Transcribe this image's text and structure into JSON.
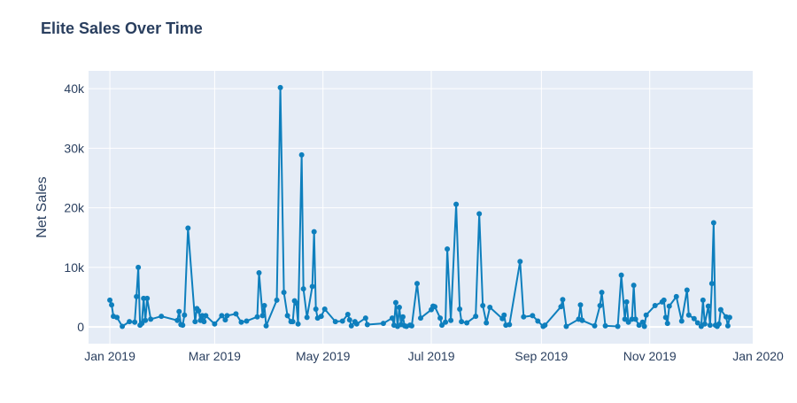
{
  "chart_data": {
    "type": "line",
    "title": "Elite Sales Over Time",
    "xlabel": "",
    "ylabel": "Net Sales",
    "x_ticks": [
      {
        "date": "2019-01-01",
        "label": "Jan 2019"
      },
      {
        "date": "2019-03-01",
        "label": "Mar 2019"
      },
      {
        "date": "2019-05-01",
        "label": "May 2019"
      },
      {
        "date": "2019-07-01",
        "label": "Jul 2019"
      },
      {
        "date": "2019-09-01",
        "label": "Sep 2019"
      },
      {
        "date": "2019-11-01",
        "label": "Nov 2019"
      },
      {
        "date": "2020-01-01",
        "label": "Jan 2020"
      }
    ],
    "y_ticks": [
      {
        "value": 0,
        "label": "0"
      },
      {
        "value": 10000,
        "label": "10k"
      },
      {
        "value": 20000,
        "label": "20k"
      },
      {
        "value": 30000,
        "label": "30k"
      },
      {
        "value": 40000,
        "label": "40k"
      }
    ],
    "xlim": [
      "2018-12-20",
      "2019-12-29"
    ],
    "ylim": [
      -2800,
      43000
    ],
    "grid": true,
    "colors": {
      "line": "#0e7fbd",
      "plot_bg": "#e5ecf6",
      "grid": "#ffffff",
      "axis_text": "#2a3f5f"
    },
    "series": [
      {
        "name": "",
        "points": [
          [
            "2019-01-01",
            4500
          ],
          [
            "2019-01-02",
            3700
          ],
          [
            "2019-01-03",
            1800
          ],
          [
            "2019-01-05",
            1600
          ],
          [
            "2019-01-08",
            100
          ],
          [
            "2019-01-12",
            900
          ],
          [
            "2019-01-15",
            800
          ],
          [
            "2019-01-16",
            5100
          ],
          [
            "2019-01-17",
            10000
          ],
          [
            "2019-01-18",
            300
          ],
          [
            "2019-01-19",
            600
          ],
          [
            "2019-01-20",
            4800
          ],
          [
            "2019-01-21",
            1100
          ],
          [
            "2019-01-22",
            4800
          ],
          [
            "2019-01-24",
            1300
          ],
          [
            "2019-01-30",
            1800
          ],
          [
            "2019-02-08",
            1100
          ],
          [
            "2019-02-09",
            2600
          ],
          [
            "2019-02-10",
            400
          ],
          [
            "2019-02-11",
            300
          ],
          [
            "2019-02-12",
            2000
          ],
          [
            "2019-02-14",
            16600
          ],
          [
            "2019-02-18",
            900
          ],
          [
            "2019-02-19",
            3100
          ],
          [
            "2019-02-20",
            2700
          ],
          [
            "2019-02-21",
            1100
          ],
          [
            "2019-02-22",
            1900
          ],
          [
            "2019-02-23",
            900
          ],
          [
            "2019-02-24",
            1900
          ],
          [
            "2019-03-01",
            500
          ],
          [
            "2019-03-05",
            1900
          ],
          [
            "2019-03-07",
            1200
          ],
          [
            "2019-03-08",
            1900
          ],
          [
            "2019-03-13",
            2200
          ],
          [
            "2019-03-16",
            800
          ],
          [
            "2019-03-19",
            1000
          ],
          [
            "2019-03-25",
            1700
          ],
          [
            "2019-03-26",
            9100
          ],
          [
            "2019-03-28",
            1900
          ],
          [
            "2019-03-29",
            3600
          ],
          [
            "2019-03-30",
            200
          ],
          [
            "2019-04-05",
            4500
          ],
          [
            "2019-04-07",
            40200
          ],
          [
            "2019-04-09",
            5800
          ],
          [
            "2019-04-11",
            1900
          ],
          [
            "2019-04-13",
            900
          ],
          [
            "2019-04-14",
            900
          ],
          [
            "2019-04-15",
            4400
          ],
          [
            "2019-04-16",
            4000
          ],
          [
            "2019-04-17",
            500
          ],
          [
            "2019-04-19",
            28900
          ],
          [
            "2019-04-20",
            6400
          ],
          [
            "2019-04-22",
            1600
          ],
          [
            "2019-04-25",
            6800
          ],
          [
            "2019-04-26",
            16000
          ],
          [
            "2019-04-27",
            3000
          ],
          [
            "2019-04-28",
            1500
          ],
          [
            "2019-04-30",
            1800
          ],
          [
            "2019-05-02",
            3000
          ],
          [
            "2019-05-08",
            900
          ],
          [
            "2019-05-12",
            1000
          ],
          [
            "2019-05-15",
            2100
          ],
          [
            "2019-05-16",
            1200
          ],
          [
            "2019-05-17",
            200
          ],
          [
            "2019-05-19",
            900
          ],
          [
            "2019-05-20",
            500
          ],
          [
            "2019-05-25",
            1500
          ],
          [
            "2019-05-26",
            400
          ],
          [
            "2019-06-04",
            600
          ],
          [
            "2019-06-09",
            1500
          ],
          [
            "2019-06-10",
            300
          ],
          [
            "2019-06-11",
            4100
          ],
          [
            "2019-06-12",
            100
          ],
          [
            "2019-06-13",
            3300
          ],
          [
            "2019-06-14",
            400
          ],
          [
            "2019-06-15",
            1700
          ],
          [
            "2019-06-16",
            200
          ],
          [
            "2019-06-17",
            100
          ],
          [
            "2019-06-19",
            300
          ],
          [
            "2019-06-20",
            200
          ],
          [
            "2019-06-23",
            7300
          ],
          [
            "2019-06-25",
            1500
          ],
          [
            "2019-07-01",
            2900
          ],
          [
            "2019-07-02",
            3500
          ],
          [
            "2019-07-03",
            3400
          ],
          [
            "2019-07-06",
            1500
          ],
          [
            "2019-07-07",
            300
          ],
          [
            "2019-07-09",
            800
          ],
          [
            "2019-07-10",
            13100
          ],
          [
            "2019-07-12",
            1100
          ],
          [
            "2019-07-15",
            20600
          ],
          [
            "2019-07-17",
            3000
          ],
          [
            "2019-07-18",
            900
          ],
          [
            "2019-07-21",
            700
          ],
          [
            "2019-07-26",
            1800
          ],
          [
            "2019-07-28",
            19000
          ],
          [
            "2019-07-30",
            3600
          ],
          [
            "2019-08-01",
            700
          ],
          [
            "2019-08-03",
            3300
          ],
          [
            "2019-08-10",
            1400
          ],
          [
            "2019-08-11",
            2000
          ],
          [
            "2019-08-12",
            300
          ],
          [
            "2019-08-14",
            400
          ],
          [
            "2019-08-20",
            11000
          ],
          [
            "2019-08-22",
            1700
          ],
          [
            "2019-08-27",
            1900
          ],
          [
            "2019-08-30",
            1000
          ],
          [
            "2019-09-02",
            100
          ],
          [
            "2019-09-03",
            300
          ],
          [
            "2019-09-12",
            3400
          ],
          [
            "2019-09-13",
            4600
          ],
          [
            "2019-09-15",
            100
          ],
          [
            "2019-09-22",
            1300
          ],
          [
            "2019-09-23",
            3700
          ],
          [
            "2019-09-24",
            1100
          ],
          [
            "2019-10-01",
            200
          ],
          [
            "2019-10-04",
            3600
          ],
          [
            "2019-10-05",
            5800
          ],
          [
            "2019-10-07",
            200
          ],
          [
            "2019-10-14",
            100
          ],
          [
            "2019-10-16",
            8700
          ],
          [
            "2019-10-18",
            1300
          ],
          [
            "2019-10-19",
            4200
          ],
          [
            "2019-10-20",
            800
          ],
          [
            "2019-10-22",
            1300
          ],
          [
            "2019-10-23",
            7000
          ],
          [
            "2019-10-24",
            1300
          ],
          [
            "2019-10-26",
            300
          ],
          [
            "2019-10-28",
            800
          ],
          [
            "2019-10-29",
            100
          ],
          [
            "2019-10-30",
            2000
          ],
          [
            "2019-11-04",
            3600
          ],
          [
            "2019-11-08",
            4200
          ],
          [
            "2019-11-09",
            4500
          ],
          [
            "2019-11-10",
            1600
          ],
          [
            "2019-11-11",
            600
          ],
          [
            "2019-11-12",
            3500
          ],
          [
            "2019-11-16",
            5100
          ],
          [
            "2019-11-19",
            1000
          ],
          [
            "2019-11-22",
            6200
          ],
          [
            "2019-11-23",
            2000
          ],
          [
            "2019-11-26",
            1400
          ],
          [
            "2019-11-28",
            700
          ],
          [
            "2019-11-30",
            100
          ],
          [
            "2019-12-01",
            4500
          ],
          [
            "2019-12-02",
            500
          ],
          [
            "2019-12-04",
            3500
          ],
          [
            "2019-12-05",
            300
          ],
          [
            "2019-12-06",
            7300
          ],
          [
            "2019-12-07",
            17500
          ],
          [
            "2019-12-08",
            300
          ],
          [
            "2019-12-09",
            100
          ],
          [
            "2019-12-10",
            500
          ],
          [
            "2019-12-11",
            2900
          ],
          [
            "2019-12-14",
            1700
          ],
          [
            "2019-12-15",
            200
          ],
          [
            "2019-12-16",
            1600
          ]
        ]
      }
    ]
  }
}
